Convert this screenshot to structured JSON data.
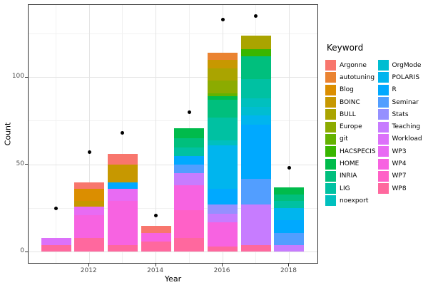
{
  "figure": {
    "background": "#FFFFFF"
  },
  "axes": {
    "x": {
      "title": "Year",
      "tick_labels": [
        "2012",
        "2014",
        "2016",
        "2018"
      ],
      "tick_years": [
        2012,
        2014,
        2016,
        2018
      ],
      "minor_grid_years": [
        2011,
        2013,
        2015,
        2017
      ]
    },
    "y": {
      "title": "Count",
      "tick_labels": [
        "0",
        "50",
        "100"
      ],
      "tick_values": [
        0,
        50,
        100
      ],
      "minor_grid_values": [
        25,
        75,
        125
      ]
    }
  },
  "legend": {
    "title": "Keyword",
    "columns": [
      [
        "Argonne",
        "autotuning",
        "Blog",
        "BOINC",
        "BULL",
        "Europe",
        "git",
        "HACSPECIS",
        "HOME",
        "INRIA",
        "LIG",
        "noexport"
      ],
      [
        "OrgMode",
        "POLARIS",
        "R",
        "Seminar",
        "Stats",
        "Teaching",
        "Workload",
        "WP3",
        "WP4",
        "WP7",
        "WP8"
      ]
    ]
  },
  "chart_data": {
    "type": "bar",
    "subtype": "stacked-bars-with-point-overlay",
    "title": "",
    "xlabel": "Year",
    "ylabel": "Count",
    "x": [
      2011,
      2012,
      2013,
      2014,
      2015,
      2016,
      2017,
      2018
    ],
    "ylim": [
      -7,
      144
    ],
    "grid": true,
    "legend_position": "right",
    "legend_title": "Keyword",
    "keywords": [
      "Argonne",
      "autotuning",
      "Blog",
      "BOINC",
      "BULL",
      "Europe",
      "git",
      "HACSPECIS",
      "HOME",
      "INRIA",
      "LIG",
      "noexport",
      "OrgMode",
      "POLARIS",
      "R",
      "Seminar",
      "Stats",
      "Teaching",
      "Workload",
      "WP3",
      "WP4",
      "WP7",
      "WP8"
    ],
    "colors": {
      "Argonne": "#F8766D",
      "autotuning": "#EA8331",
      "Blog": "#DB8E00",
      "BOINC": "#C79800",
      "BULL": "#AAA400",
      "Europe": "#8CAB00",
      "git": "#64B200",
      "HACSPECIS": "#39B600",
      "HOME": "#00BB4B",
      "INRIA": "#00BF7D",
      "LIG": "#00C1A2",
      "noexport": "#00C0BE",
      "OrgMode": "#00BDD1",
      "POLARIS": "#00B5EE",
      "R": "#00A9FF",
      "Seminar": "#529EFF",
      "Stats": "#9590FF",
      "Teaching": "#C77CFF",
      "Workload": "#DC71FA",
      "WP3": "#E86BF3",
      "WP4": "#F763E1",
      "WP7": "#FF61C7",
      "WP8": "#FF689E"
    },
    "bars": [
      {
        "year": 2011,
        "total": 8,
        "segments_bottom_to_top": [
          [
            "WP8",
            4
          ],
          [
            "Workload",
            4
          ]
        ]
      },
      {
        "year": 2012,
        "total": 40,
        "segments_bottom_to_top": [
          [
            "WP8",
            8
          ],
          [
            "WP4",
            13
          ],
          [
            "WP3",
            5
          ],
          [
            "BOINC",
            3
          ],
          [
            "Blog",
            7
          ],
          [
            "Argonne",
            4
          ]
        ]
      },
      {
        "year": 2013,
        "total": 56,
        "segments_bottom_to_top": [
          [
            "WP8",
            4
          ],
          [
            "WP4",
            25
          ],
          [
            "WP3",
            7
          ],
          [
            "R",
            4
          ],
          [
            "BOINC",
            10
          ],
          [
            "Argonne",
            6
          ]
        ]
      },
      {
        "year": 2014,
        "total": 15,
        "segments_bottom_to_top": [
          [
            "WP8",
            6
          ],
          [
            "WP4",
            5
          ],
          [
            "Argonne",
            4
          ]
        ]
      },
      {
        "year": 2015,
        "total": 71,
        "segments_bottom_to_top": [
          [
            "WP8",
            8
          ],
          [
            "WP7",
            16
          ],
          [
            "WP4",
            14
          ],
          [
            "Teaching",
            7
          ],
          [
            "Seminar",
            5
          ],
          [
            "R",
            5
          ],
          [
            "LIG",
            5
          ],
          [
            "INRIA",
            5
          ],
          [
            "HOME",
            6
          ]
        ]
      },
      {
        "year": 2016,
        "total": 114,
        "segments_bottom_to_top": [
          [
            "WP8",
            3
          ],
          [
            "WP4",
            14
          ],
          [
            "Teaching",
            5
          ],
          [
            "Stats",
            5
          ],
          [
            "R",
            9
          ],
          [
            "POLARIS",
            25
          ],
          [
            "noexport",
            3
          ],
          [
            "LIG",
            13
          ],
          [
            "INRIA",
            10
          ],
          [
            "HOME",
            2
          ],
          [
            "git",
            2
          ],
          [
            "Europe",
            7
          ],
          [
            "BULL",
            7
          ],
          [
            "BOINC",
            5
          ],
          [
            "autotuning",
            4
          ]
        ]
      },
      {
        "year": 2017,
        "total": 124,
        "segments_bottom_to_top": [
          [
            "WP8",
            4
          ],
          [
            "Teaching",
            23
          ],
          [
            "Seminar",
            15
          ],
          [
            "R",
            31
          ],
          [
            "POLARIS",
            5
          ],
          [
            "OrgMode",
            5
          ],
          [
            "noexport",
            5
          ],
          [
            "LIG",
            11
          ],
          [
            "INRIA",
            13
          ],
          [
            "HACSPECIS",
            4
          ],
          [
            "BULL",
            8
          ]
        ]
      },
      {
        "year": 2018,
        "total": 37,
        "segments_bottom_to_top": [
          [
            "Teaching",
            4
          ],
          [
            "Seminar",
            7
          ],
          [
            "R",
            7
          ],
          [
            "POLARIS",
            7
          ],
          [
            "LIG",
            4
          ],
          [
            "INRIA",
            4
          ],
          [
            "HOME",
            4
          ]
        ]
      }
    ],
    "points": [
      {
        "year": 2011,
        "value": 25
      },
      {
        "year": 2012,
        "value": 57
      },
      {
        "year": 2013,
        "value": 68
      },
      {
        "year": 2014,
        "value": 21
      },
      {
        "year": 2015,
        "value": 80
      },
      {
        "year": 2016,
        "value": 133
      },
      {
        "year": 2017,
        "value": 135
      },
      {
        "year": 2018,
        "value": 48
      }
    ]
  }
}
